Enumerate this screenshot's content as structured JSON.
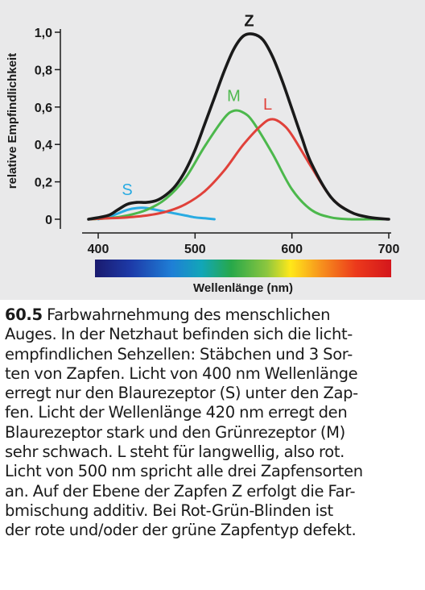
{
  "chart_data": {
    "type": "line",
    "xlabel": "Wellenlänge (nm)",
    "ylabel": "relative Empfindlichkeit",
    "xlim": [
      400,
      700
    ],
    "ylim": [
      0,
      1.0
    ],
    "x_ticks": [
      "400",
      "500",
      "600",
      "700"
    ],
    "y_ticks": [
      "0",
      "0,2",
      "0,4",
      "0,6",
      "0,8",
      "1,0"
    ],
    "grid": false,
    "legend": "labels placed next to curves",
    "spectrum_bar": true,
    "series": [
      {
        "name": "S",
        "color": "#29abe2",
        "x": [
          400,
          410,
          420,
          430,
          440,
          450,
          460,
          470,
          480,
          490,
          500,
          510,
          520
        ],
        "y": [
          0.0,
          0.01,
          0.03,
          0.05,
          0.06,
          0.06,
          0.05,
          0.04,
          0.03,
          0.02,
          0.01,
          0.005,
          0.0
        ]
      },
      {
        "name": "M",
        "color": "#4cb84c",
        "x": [
          390,
          410,
          430,
          450,
          470,
          490,
          510,
          530,
          540,
          550,
          560,
          580,
          600,
          620,
          640,
          660,
          680,
          700
        ],
        "y": [
          0.0,
          0.005,
          0.02,
          0.05,
          0.11,
          0.22,
          0.39,
          0.54,
          0.58,
          0.57,
          0.52,
          0.35,
          0.16,
          0.05,
          0.01,
          0.0,
          0.0,
          0.0
        ]
      },
      {
        "name": "L",
        "color": "#e0413a",
        "x": [
          390,
          410,
          430,
          450,
          470,
          490,
          510,
          530,
          550,
          570,
          580,
          590,
          600,
          620,
          640,
          660,
          680,
          700
        ],
        "y": [
          0.0,
          0.005,
          0.01,
          0.02,
          0.04,
          0.08,
          0.15,
          0.26,
          0.4,
          0.51,
          0.535,
          0.51,
          0.45,
          0.28,
          0.12,
          0.04,
          0.01,
          0.0
        ]
      },
      {
        "name": "Z",
        "color": "#1a1a1a",
        "x": [
          390,
          410,
          420,
          430,
          440,
          450,
          460,
          470,
          480,
          490,
          500,
          510,
          520,
          530,
          540,
          550,
          560,
          570,
          580,
          590,
          600,
          610,
          620,
          640,
          660,
          680,
          700
        ],
        "y": [
          0.0,
          0.02,
          0.05,
          0.08,
          0.09,
          0.09,
          0.1,
          0.13,
          0.18,
          0.26,
          0.37,
          0.51,
          0.65,
          0.79,
          0.91,
          0.98,
          0.99,
          0.96,
          0.87,
          0.74,
          0.59,
          0.44,
          0.3,
          0.12,
          0.04,
          0.01,
          0.0
        ]
      }
    ]
  },
  "caption": {
    "figure_number": "60.5",
    "lines": [
      " Farbwahrnehmung des menschlichen",
      "Auges. In der Netzhaut befinden sich die licht-",
      "empfindlichen Sehzellen: Stäbchen und 3 Sor-",
      "ten von Zapfen. Licht von 400 nm Wellenlänge",
      "erregt nur den Blaurezeptor (S) unter den Zap-",
      "fen. Licht der Wellenlänge 420 nm erregt den",
      "Blaurezeptor stark und den Grünrezeptor (M)",
      "sehr schwach. L steht für langwellig, also rot.",
      "Licht von 500 nm spricht alle drei Zapfensorten",
      "an. Auf der Ebene der Zapfen Z erfolgt die Far-",
      "bmischung additiv. Bei Rot-Grün-Blinden ist",
      "der rote und/oder der grüne Zapfentyp defekt."
    ]
  }
}
